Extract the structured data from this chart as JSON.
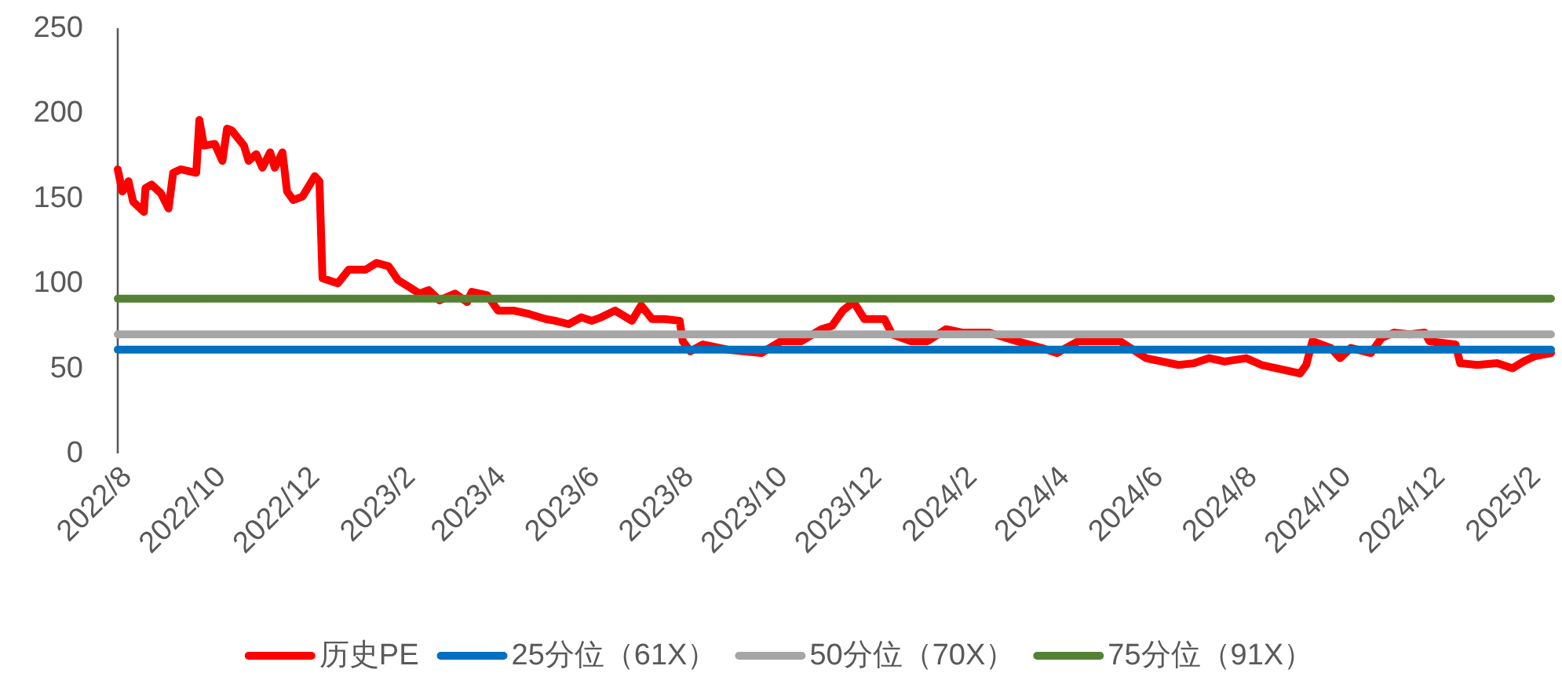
{
  "chart_data": {
    "type": "line",
    "legend": "bottom",
    "xlim": [
      "2022-08-01",
      "2025-02-17"
    ],
    "ylim": [
      0,
      250
    ],
    "yticks": [
      0,
      50,
      100,
      150,
      200,
      250
    ],
    "xticks": [
      {
        "value": "2022-08",
        "label": "2022/8"
      },
      {
        "value": "2022-10",
        "label": "2022/10"
      },
      {
        "value": "2022-12",
        "label": "2022/12"
      },
      {
        "value": "2023-02",
        "label": "2023/2"
      },
      {
        "value": "2023-04",
        "label": "2023/4"
      },
      {
        "value": "2023-06",
        "label": "2023/6"
      },
      {
        "value": "2023-08",
        "label": "2023/8"
      },
      {
        "value": "2023-10",
        "label": "2023/10"
      },
      {
        "value": "2023-12",
        "label": "2023/12"
      },
      {
        "value": "2024-02",
        "label": "2024/2"
      },
      {
        "value": "2024-04",
        "label": "2024/4"
      },
      {
        "value": "2024-06",
        "label": "2024/6"
      },
      {
        "value": "2024-08",
        "label": "2024/8"
      },
      {
        "value": "2024-10",
        "label": "2024/10"
      },
      {
        "value": "2024-12",
        "label": "2024/12"
      },
      {
        "value": "2025-02",
        "label": "2025/2"
      }
    ],
    "series": [
      {
        "name": "历史PE",
        "color": "#ff0000",
        "x": [
          "2022-08-01",
          "2022-08-04",
          "2022-08-08",
          "2022-08-11",
          "2022-08-18",
          "2022-08-19",
          "2022-08-23",
          "2022-08-29",
          "2022-09-03",
          "2022-09-06",
          "2022-09-11",
          "2022-09-21",
          "2022-09-23",
          "2022-09-26",
          "2022-10-03",
          "2022-10-08",
          "2022-10-11",
          "2022-10-14",
          "2022-10-22",
          "2022-10-25",
          "2022-10-30",
          "2022-11-03",
          "2022-11-08",
          "2022-11-11",
          "2022-11-16",
          "2022-11-19",
          "2022-11-23",
          "2022-11-29",
          "2022-12-07",
          "2022-12-10",
          "2022-12-12",
          "2022-12-22",
          "2022-12-29",
          "2023-01-09",
          "2023-01-16",
          "2023-01-24",
          "2023-01-30",
          "2023-02-06",
          "2023-02-13",
          "2023-02-19",
          "2023-02-26",
          "2023-03-08",
          "2023-03-16",
          "2023-03-19",
          "2023-03-29",
          "2023-04-05",
          "2023-04-15",
          "2023-04-25",
          "2023-05-06",
          "2023-05-12",
          "2023-05-21",
          "2023-05-29",
          "2023-06-05",
          "2023-06-11",
          "2023-06-20",
          "2023-07-01",
          "2023-07-07",
          "2023-07-14",
          "2023-07-22",
          "2023-08-01",
          "2023-08-03",
          "2023-08-08",
          "2023-08-16",
          "2023-09-01",
          "2023-09-23",
          "2023-10-06",
          "2023-10-19",
          "2023-11-01",
          "2023-11-08",
          "2023-11-15",
          "2023-11-22",
          "2023-11-29",
          "2023-12-12",
          "2023-12-17",
          "2023-12-29",
          "2024-01-09",
          "2024-01-21",
          "2024-02-01",
          "2024-02-18",
          "2024-03-07",
          "2024-03-23",
          "2024-04-02",
          "2024-04-16",
          "2024-05-13",
          "2024-05-30",
          "2024-06-20",
          "2024-06-30",
          "2024-07-10",
          "2024-07-20",
          "2024-08-03",
          "2024-08-13",
          "2024-08-23",
          "2024-09-07",
          "2024-09-11",
          "2024-09-15",
          "2024-09-27",
          "2024-10-03",
          "2024-10-10",
          "2024-10-23",
          "2024-10-30",
          "2024-11-07",
          "2024-11-17",
          "2024-11-27",
          "2024-11-30",
          "2024-12-17",
          "2024-12-20",
          "2024-12-31",
          "2025-01-13",
          "2025-01-23",
          "2025-01-30",
          "2025-02-06",
          "2025-02-17"
        ],
        "values": [
          167,
          154,
          160,
          148,
          142,
          156,
          158,
          153,
          144,
          165,
          167,
          165,
          196,
          181,
          182,
          172,
          191,
          190,
          181,
          172,
          176,
          168,
          177,
          168,
          177,
          154,
          149,
          151,
          163,
          160,
          103,
          100,
          108,
          108,
          112,
          110,
          102,
          98,
          94,
          96,
          90,
          94,
          89,
          95,
          93,
          84,
          84,
          82,
          79,
          78,
          76,
          80,
          78,
          80,
          84,
          78,
          87,
          79,
          79,
          78,
          66,
          60,
          64,
          61,
          59,
          66,
          66,
          73,
          75,
          84,
          89,
          79,
          79,
          70,
          66,
          66,
          73,
          71,
          71,
          66,
          62,
          59,
          66,
          66,
          56,
          52,
          53,
          56,
          54,
          56,
          52,
          50,
          47,
          52,
          66,
          62,
          56,
          62,
          59,
          68,
          71,
          70,
          71,
          66,
          64,
          53,
          52,
          53,
          50,
          54,
          57,
          59
        ]
      },
      {
        "name": "25分位（61X）",
        "color": "#0070c0",
        "x": [
          "2022-08-01",
          "2025-02-17"
        ],
        "values": [
          61,
          61
        ]
      },
      {
        "name": "50分位（70X）",
        "color": "#a6a6a6",
        "x": [
          "2022-08-01",
          "2025-02-17"
        ],
        "values": [
          70,
          70
        ]
      },
      {
        "name": "75分位（91X）",
        "color": "#548235",
        "x": [
          "2022-08-01",
          "2025-02-17"
        ],
        "values": [
          91,
          91
        ]
      }
    ]
  }
}
